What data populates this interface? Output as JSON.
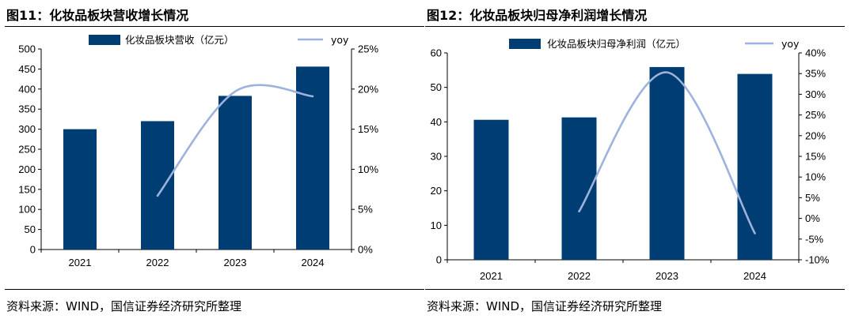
{
  "figures": [
    {
      "title": "图11：化妆品板块营收增长情况",
      "source": "资料来源：WIND，国信证券经济研究所整理"
    },
    {
      "title": "图12：化妆品板块归母净利润增长情况",
      "source": "资料来源：WIND，国信证券经济研究所整理"
    }
  ],
  "chart_data": [
    {
      "type": "bar",
      "categories": [
        "2021",
        "2022",
        "2023",
        "2024"
      ],
      "series": [
        {
          "name": "化妆品板块营收（亿元）",
          "type": "bar",
          "axis": "left",
          "values": [
            300,
            320,
            383,
            456
          ]
        },
        {
          "name": "yoy",
          "type": "line",
          "axis": "right",
          "smooth": true,
          "values": [
            null,
            6.7,
            19.7,
            19.1
          ]
        }
      ],
      "ylim": [
        0,
        500
      ],
      "yticks": [
        0,
        50,
        100,
        150,
        200,
        250,
        300,
        350,
        400,
        450,
        500
      ],
      "y2lim": [
        0,
        25
      ],
      "y2ticks": [
        0,
        5,
        10,
        15,
        20,
        25
      ],
      "y2_unit": "%",
      "legend": "top",
      "grid": false,
      "colors": {
        "bar": "#003d73",
        "line": "#9db3de"
      }
    },
    {
      "type": "bar",
      "categories": [
        "2021",
        "2022",
        "2023",
        "2024"
      ],
      "series": [
        {
          "name": "化妆品板块归母净利润（亿元）",
          "type": "bar",
          "axis": "left",
          "values": [
            40.6,
            41.3,
            55.9,
            53.9
          ]
        },
        {
          "name": "yoy",
          "type": "line",
          "axis": "right",
          "smooth": true,
          "values": [
            null,
            1.7,
            35.3,
            -3.6
          ]
        }
      ],
      "ylim": [
        0,
        60
      ],
      "yticks": [
        0,
        10,
        20,
        30,
        40,
        50,
        60
      ],
      "y2lim": [
        -10,
        40
      ],
      "y2ticks": [
        -10,
        -5,
        0,
        5,
        10,
        15,
        20,
        25,
        30,
        35,
        40
      ],
      "y2_unit": "%",
      "legend": "top",
      "grid": false,
      "colors": {
        "bar": "#003d73",
        "line": "#9db3de"
      }
    }
  ]
}
